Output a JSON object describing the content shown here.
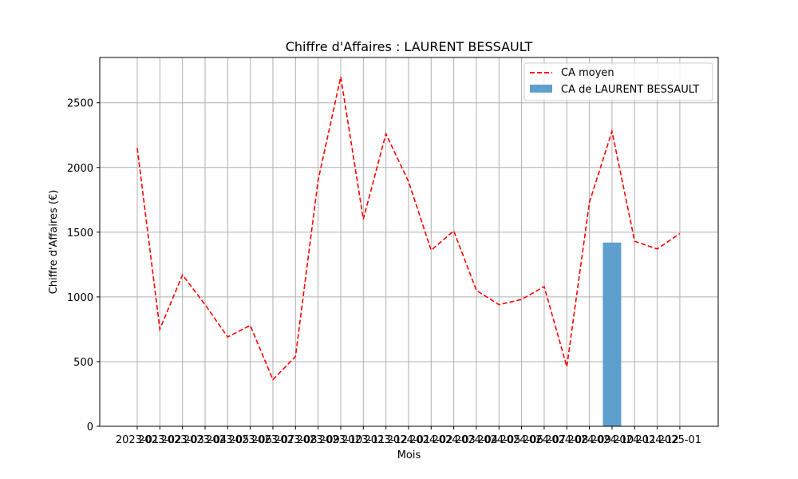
{
  "chart_data": {
    "type": "line",
    "title": "Chiffre d'Affaires : LAURENT BESSAULT",
    "xlabel": "Mois",
    "ylabel": "Chiffre d'Affaires (€)",
    "ylim": [
      0,
      2850
    ],
    "yticks": [
      0,
      500,
      1000,
      1500,
      2000,
      2500
    ],
    "grid": true,
    "legend_position": "upper right",
    "categories": [
      "2023-01",
      "2023-02",
      "2023-03",
      "2023-04",
      "2023-05",
      "2023-06",
      "2023-07",
      "2023-08",
      "2023-09",
      "2023-10",
      "2023-11",
      "2023-12",
      "2024-01",
      "2024-02",
      "2024-03",
      "2024-04",
      "2024-05",
      "2024-06",
      "2024-07",
      "2024-08",
      "2024-09",
      "2024-10",
      "2024-11",
      "2024-12",
      "2025-01"
    ],
    "series": [
      {
        "name": "CA moyen",
        "kind": "line",
        "style": "dashed",
        "color": "#ff0000",
        "values": [
          2150,
          750,
          1170,
          940,
          690,
          780,
          360,
          540,
          1900,
          2700,
          1600,
          2260,
          1890,
          1360,
          1510,
          1050,
          940,
          980,
          1080,
          460,
          1730,
          2280,
          1430,
          1370,
          1490
        ]
      },
      {
        "name": "CA de LAURENT BESSAULT",
        "kind": "bar",
        "color": "#5f9fce",
        "values": [
          null,
          null,
          null,
          null,
          null,
          null,
          null,
          null,
          null,
          null,
          null,
          null,
          null,
          null,
          null,
          null,
          null,
          null,
          null,
          null,
          null,
          1420,
          null,
          null,
          null
        ]
      }
    ]
  }
}
